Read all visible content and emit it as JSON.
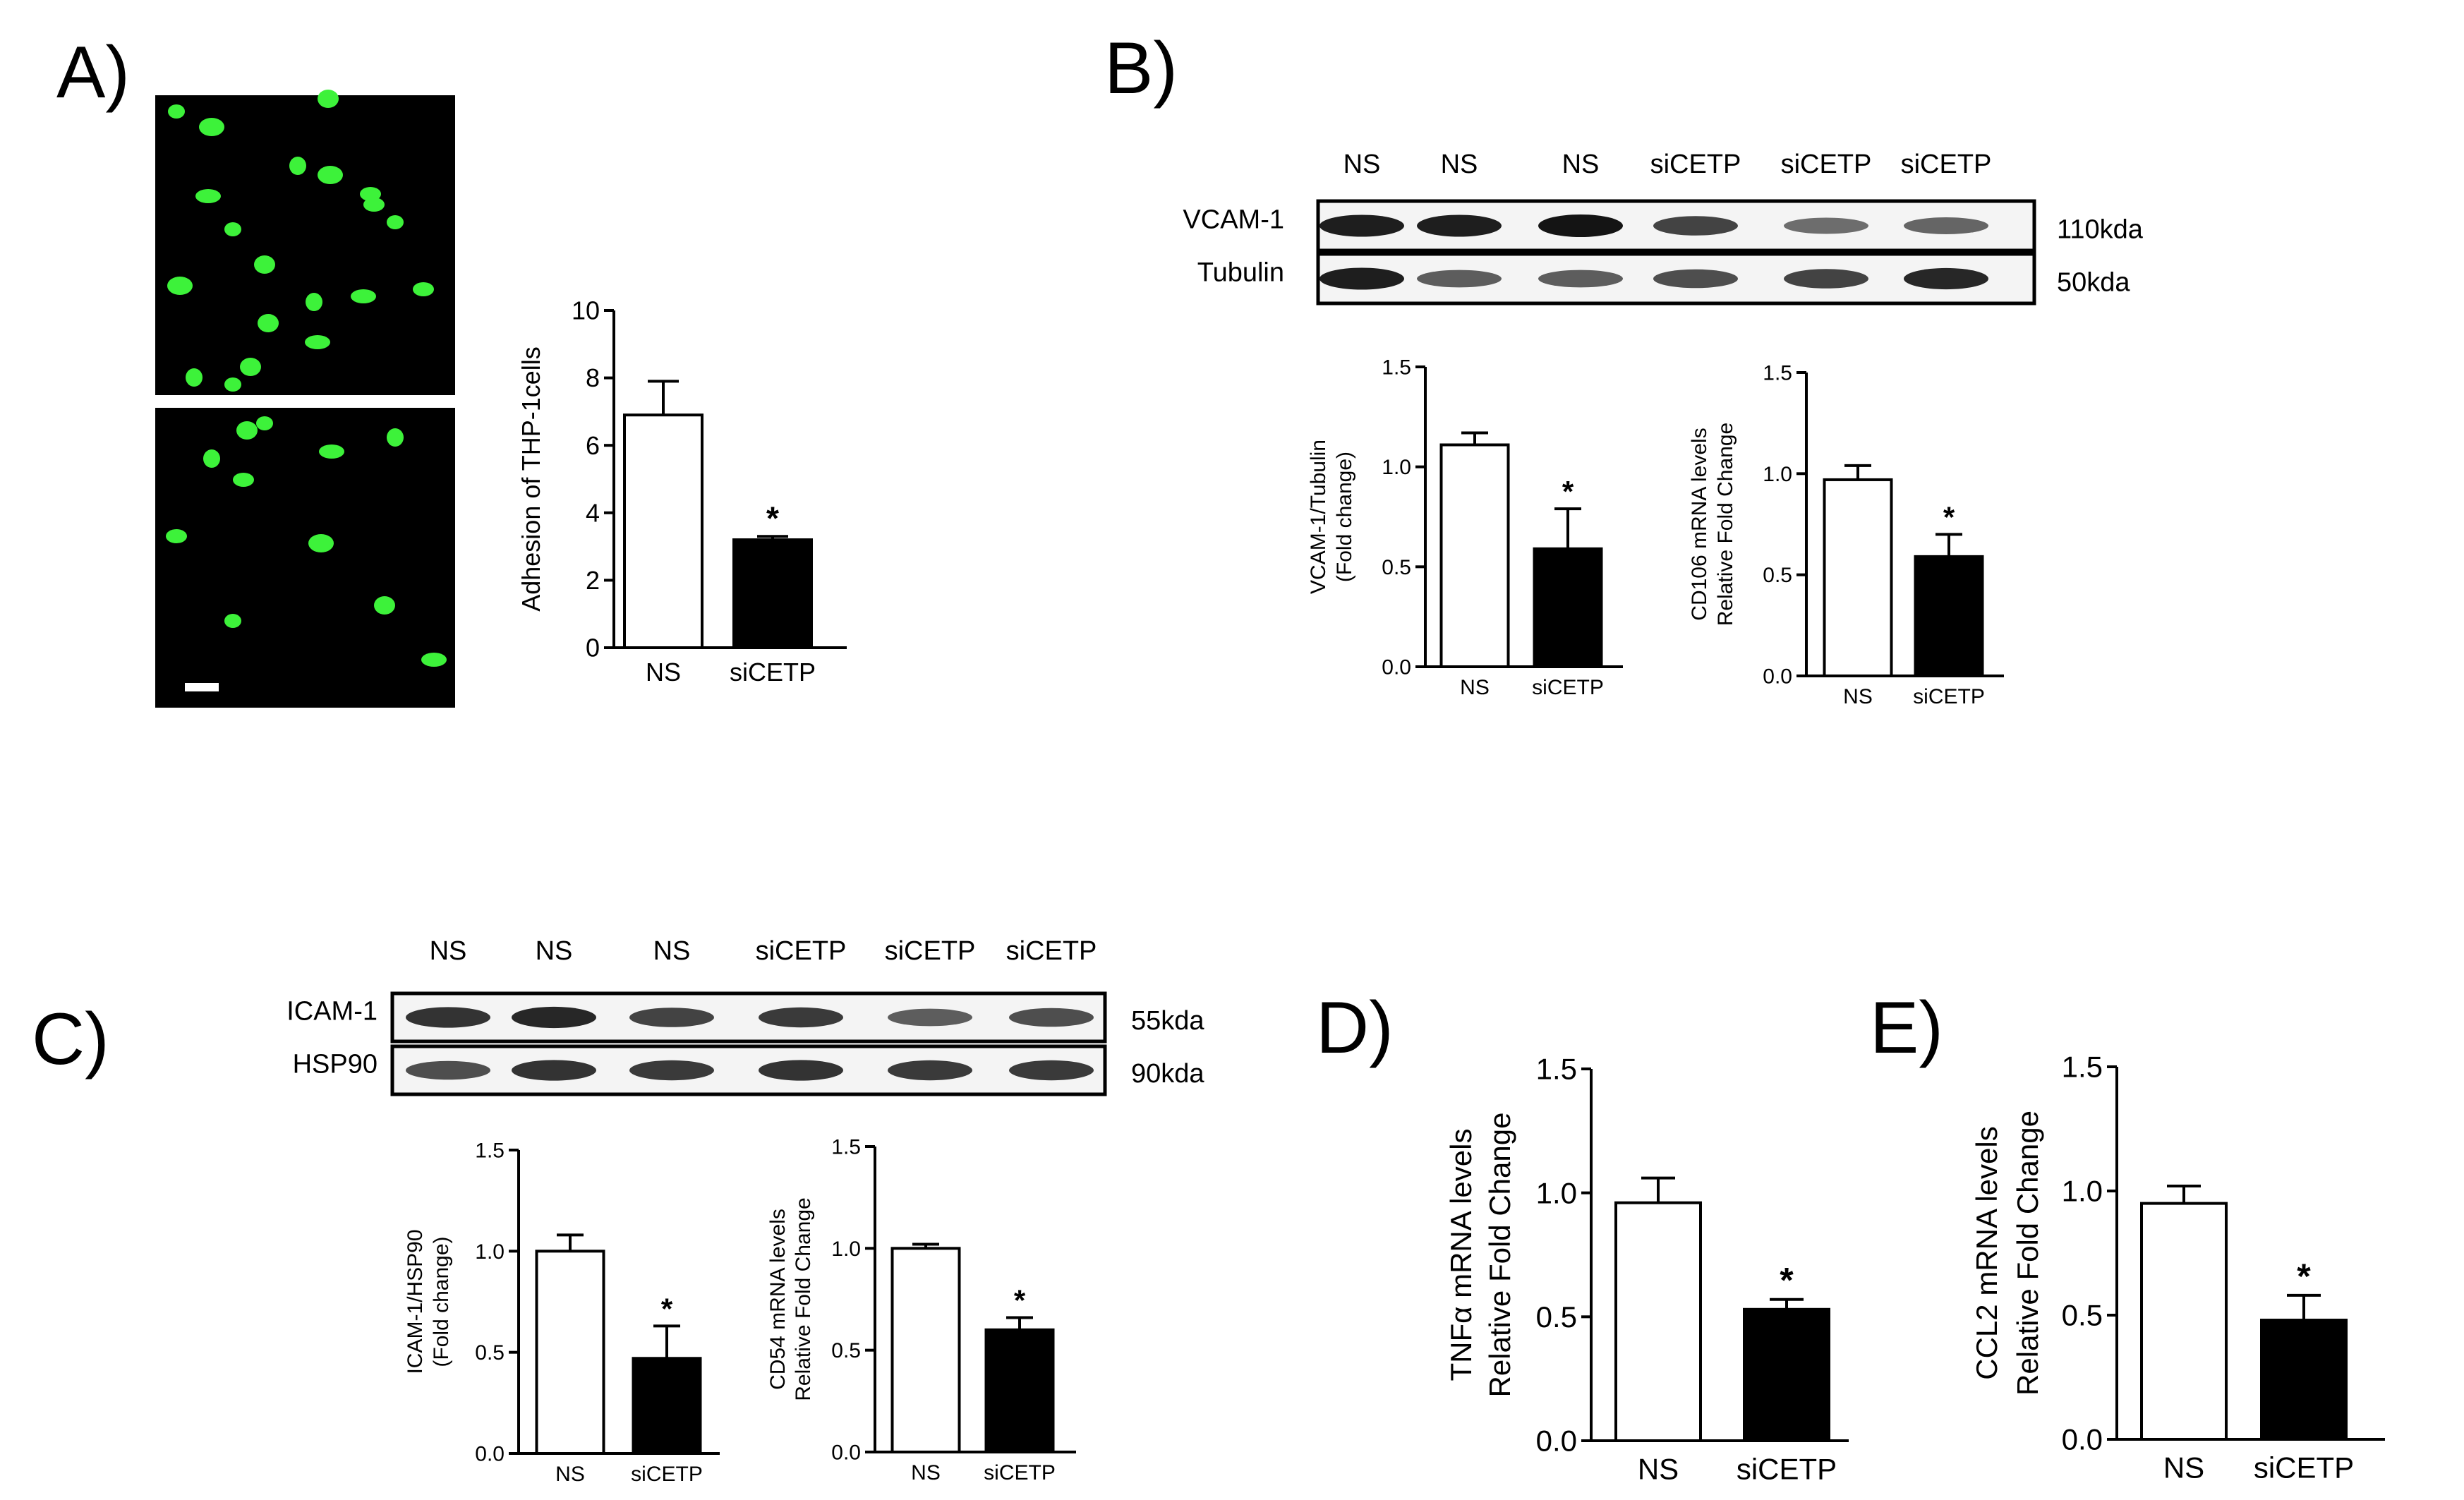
{
  "panels": {
    "A": {
      "label": "A)",
      "micrograph_top": {
        "cells": [
          [
            250,
            158
          ],
          [
            465,
            140
          ],
          [
            295,
            278
          ],
          [
            422,
            235
          ],
          [
            525,
            275
          ],
          [
            468,
            248
          ],
          [
            330,
            325
          ],
          [
            375,
            375
          ],
          [
            515,
            420
          ],
          [
            445,
            428
          ],
          [
            600,
            410
          ],
          [
            255,
            405
          ],
          [
            330,
            545
          ],
          [
            355,
            520
          ],
          [
            450,
            485
          ],
          [
            275,
            535
          ],
          [
            530,
            290
          ],
          [
            300,
            180
          ],
          [
            560,
            315
          ],
          [
            380,
            458
          ]
        ]
      },
      "micrograph_bottom": {
        "cells": [
          [
            375,
            600
          ],
          [
            350,
            610
          ],
          [
            470,
            640
          ],
          [
            300,
            650
          ],
          [
            345,
            680
          ],
          [
            455,
            770
          ],
          [
            330,
            880
          ],
          [
            545,
            858
          ],
          [
            615,
            935
          ],
          [
            560,
            620
          ],
          [
            250,
            760
          ]
        ]
      }
    },
    "B": {
      "label": "B)",
      "blot": {
        "lanes": [
          "NS",
          "NS",
          "NS",
          "siCETP",
          "siCETP",
          "siCETP"
        ],
        "rows": [
          {
            "label": "VCAM-1",
            "size": "110kda",
            "intensities": [
              0.95,
              0.95,
              1.0,
              0.75,
              0.5,
              0.55
            ]
          },
          {
            "label": "Tubulin",
            "size": "50kda",
            "intensities": [
              0.95,
              0.6,
              0.6,
              0.7,
              0.75,
              0.9
            ]
          }
        ]
      }
    },
    "C": {
      "label": "C)",
      "blot": {
        "lanes": [
          "NS",
          "NS",
          "NS",
          "siCETP",
          "siCETP",
          "siCETP"
        ],
        "rows": [
          {
            "label": "ICAM-1",
            "size": "55kda",
            "intensities": [
              0.85,
              0.9,
              0.75,
              0.8,
              0.6,
              0.7
            ]
          },
          {
            "label": "HSP90",
            "size": "90kda",
            "intensities": [
              0.7,
              0.85,
              0.8,
              0.85,
              0.8,
              0.8
            ]
          }
        ]
      }
    },
    "D": {
      "label": "D)"
    },
    "E": {
      "label": "E)"
    }
  },
  "chart_data": [
    {
      "id": "A-adhesion",
      "type": "bar",
      "categories": [
        "NS",
        "siCETP"
      ],
      "values": [
        6.9,
        3.2
      ],
      "errors": [
        1.0,
        0.1
      ],
      "colors": [
        "#ffffff",
        "#000000"
      ],
      "significance": [
        "",
        "*"
      ],
      "ylabel": "Adhesion of THP-1cells",
      "ylabel2": "",
      "ylim": [
        0,
        10
      ],
      "yticks": [
        "0",
        "2",
        "4",
        "6",
        "8",
        "10"
      ]
    },
    {
      "id": "B-vcam",
      "type": "bar",
      "categories": [
        "NS",
        "siCETP"
      ],
      "values": [
        1.11,
        0.59
      ],
      "errors": [
        0.06,
        0.2
      ],
      "colors": [
        "#ffffff",
        "#000000"
      ],
      "significance": [
        "",
        "*"
      ],
      "ylabel": "VCAM-1/Tubulin",
      "ylabel2": "(Fold change)",
      "ylim": [
        0,
        1.5
      ],
      "yticks": [
        "0.0",
        "0.5",
        "1.0",
        "1.5"
      ]
    },
    {
      "id": "B-cd106",
      "type": "bar",
      "categories": [
        "NS",
        "siCETP"
      ],
      "values": [
        0.97,
        0.59
      ],
      "errors": [
        0.07,
        0.11
      ],
      "colors": [
        "#ffffff",
        "#000000"
      ],
      "significance": [
        "",
        "*"
      ],
      "ylabel": "CD106 mRNA levels",
      "ylabel2": "Relative Fold Change",
      "ylim": [
        0,
        1.5
      ],
      "yticks": [
        "0.0",
        "0.5",
        "1.0",
        "1.5"
      ]
    },
    {
      "id": "C-icam",
      "type": "bar",
      "categories": [
        "NS",
        "siCETP"
      ],
      "values": [
        1.0,
        0.47
      ],
      "errors": [
        0.08,
        0.16
      ],
      "colors": [
        "#ffffff",
        "#000000"
      ],
      "significance": [
        "",
        "*"
      ],
      "ylabel": "ICAM-1/HSP90",
      "ylabel2": "(Fold change)",
      "ylim": [
        0,
        1.5
      ],
      "yticks": [
        "0.0",
        "0.5",
        "1.0",
        "1.5"
      ]
    },
    {
      "id": "C-cd54",
      "type": "bar",
      "categories": [
        "NS",
        "siCETP"
      ],
      "values": [
        1.0,
        0.6
      ],
      "errors": [
        0.02,
        0.06
      ],
      "colors": [
        "#ffffff",
        "#000000"
      ],
      "significance": [
        "",
        "*"
      ],
      "ylabel": "CD54 mRNA levels",
      "ylabel2": "Relative Fold Change",
      "ylim": [
        0,
        1.5
      ],
      "yticks": [
        "0.0",
        "0.5",
        "1.0",
        "1.5"
      ]
    },
    {
      "id": "D-tnfa",
      "type": "bar",
      "categories": [
        "NS",
        "siCETP"
      ],
      "values": [
        0.96,
        0.53
      ],
      "errors": [
        0.1,
        0.04
      ],
      "colors": [
        "#ffffff",
        "#000000"
      ],
      "significance": [
        "",
        "*"
      ],
      "ylabel": "TNFα mRNA levels",
      "ylabel2": "Relative Fold Change",
      "ylim": [
        0,
        1.5
      ],
      "yticks": [
        "0.0",
        "0.5",
        "1.0",
        "1.5"
      ]
    },
    {
      "id": "E-ccl2",
      "type": "bar",
      "categories": [
        "NS",
        "siCETP"
      ],
      "values": [
        0.95,
        0.48
      ],
      "errors": [
        0.07,
        0.1
      ],
      "colors": [
        "#ffffff",
        "#000000"
      ],
      "significance": [
        "",
        "*"
      ],
      "ylabel": "CCL2 mRNA levels",
      "ylabel2": "Relative Fold Change",
      "ylim": [
        0,
        1.5
      ],
      "yticks": [
        "0.0",
        "0.5",
        "1.0",
        "1.5"
      ]
    }
  ]
}
